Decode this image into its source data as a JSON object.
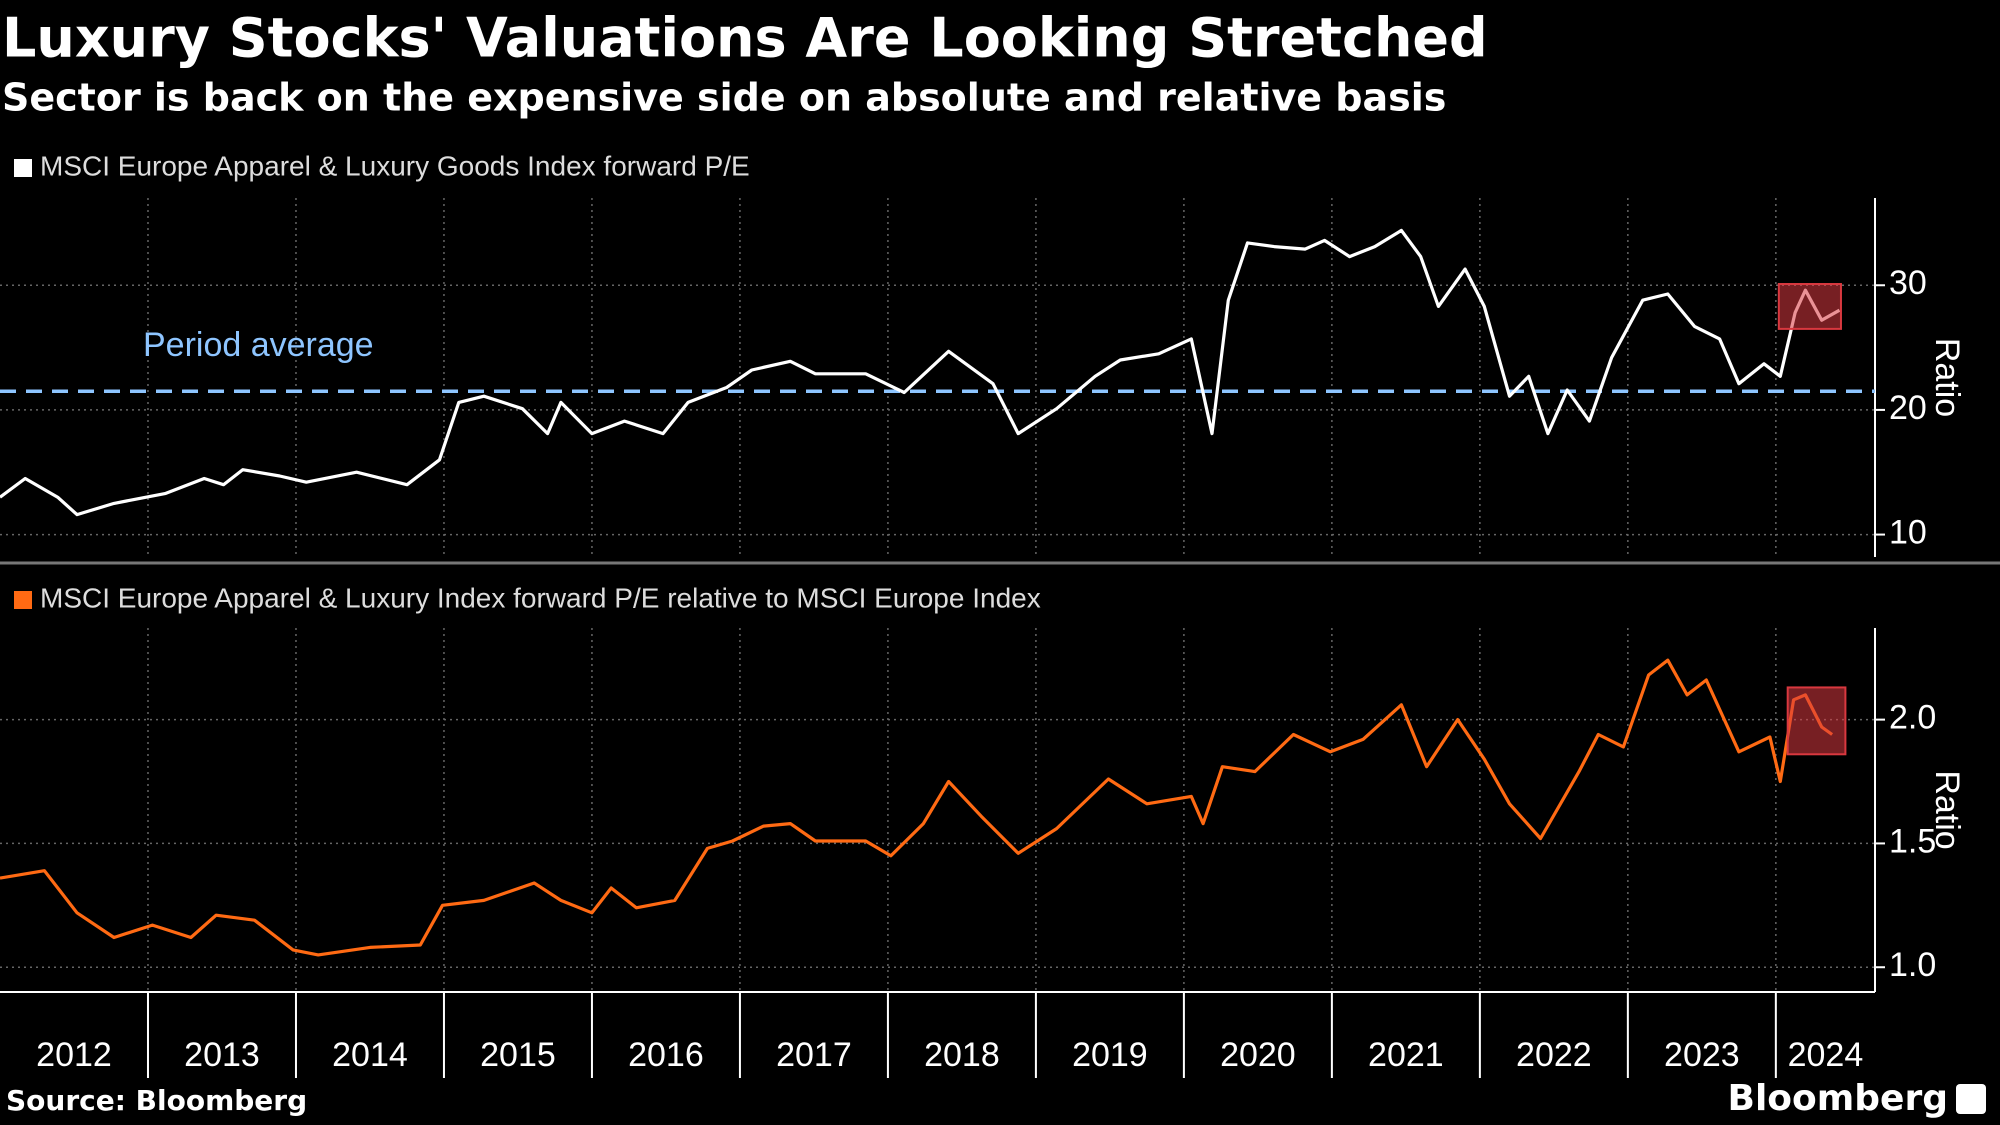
{
  "title": "Luxury Stocks' Valuations Are Looking Stretched",
  "subtitle": "Sector is back on the expensive side on absolute and relative basis",
  "source": "Source: Bloomberg",
  "brand": "Bloomberg",
  "chart_data": [
    {
      "type": "line",
      "ylabel": "Ratio",
      "grid": true,
      "xlim": [
        2012,
        2024.67
      ],
      "ylim": [
        8.2,
        37
      ],
      "yticks": [
        10,
        20,
        30
      ],
      "x": [
        2012.0,
        2012.17,
        2012.39,
        2012.52,
        2012.77,
        2013.12,
        2013.38,
        2013.51,
        2013.64,
        2013.89,
        2014.07,
        2014.41,
        2014.75,
        2014.97,
        2015.1,
        2015.27,
        2015.53,
        2015.7,
        2015.79,
        2016.0,
        2016.22,
        2016.48,
        2016.65,
        2016.91,
        2017.08,
        2017.34,
        2017.51,
        2017.85,
        2018.11,
        2018.41,
        2018.71,
        2018.88,
        2019.14,
        2019.4,
        2019.57,
        2019.83,
        2020.05,
        2020.19,
        2020.3,
        2020.43,
        2020.61,
        2020.82,
        2020.95,
        2021.12,
        2021.29,
        2021.47,
        2021.6,
        2021.72,
        2021.9,
        2022.03,
        2022.2,
        2022.33,
        2022.46,
        2022.59,
        2022.74,
        2022.89,
        2023.1,
        2023.27,
        2023.45,
        2023.62,
        2023.75,
        2023.92,
        2024.03,
        2024.13,
        2024.2,
        2024.31,
        2024.43
      ],
      "series": [
        {
          "name": "MSCI Europe Apparel & Luxury Goods Index forward P/E",
          "color": "#ffffff",
          "values": [
            13.0,
            14.5,
            13.0,
            11.6,
            12.5,
            13.3,
            14.5,
            14.0,
            15.2,
            14.7,
            14.2,
            15.0,
            14.0,
            16.0,
            20.6,
            21.1,
            20.1,
            18.1,
            20.6,
            18.1,
            19.1,
            18.1,
            20.6,
            21.8,
            23.2,
            23.9,
            22.9,
            22.9,
            21.4,
            24.7,
            22.1,
            18.1,
            20.1,
            22.7,
            24.0,
            24.5,
            25.7,
            18.1,
            28.8,
            33.4,
            33.1,
            32.9,
            33.6,
            32.3,
            33.1,
            34.4,
            32.3,
            28.3,
            31.3,
            28.3,
            21.1,
            22.7,
            18.1,
            21.6,
            19.1,
            24.2,
            28.8,
            29.3,
            26.7,
            25.7,
            22.1,
            23.7,
            22.7,
            27.8,
            29.6,
            27.2,
            28.0
          ]
        }
      ],
      "reference_line": {
        "label": "Period average",
        "value": 21.5,
        "color": "#8ec5ff"
      },
      "highlight": {
        "x": [
          2024.02,
          2024.44
        ],
        "y": [
          26.5,
          30.1
        ],
        "color": "#d9383f"
      }
    },
    {
      "type": "line",
      "ylabel": "Ratio",
      "grid": true,
      "xlim": [
        2012,
        2024.67
      ],
      "ylim": [
        0.9,
        2.37
      ],
      "yticks": [
        {
          "value": 1,
          "label": "1.0"
        },
        1.5,
        {
          "value": 2,
          "label": "2.0"
        }
      ],
      "xticks": [
        2012,
        2013,
        2014,
        2015,
        2016,
        2017,
        2018,
        2019,
        2020,
        2021,
        2022,
        2023,
        2024
      ],
      "x": [
        2012.0,
        2012.3,
        2012.52,
        2012.77,
        2013.03,
        2013.29,
        2013.46,
        2013.72,
        2013.98,
        2014.15,
        2014.5,
        2014.84,
        2014.99,
        2015.27,
        2015.61,
        2015.79,
        2016.0,
        2016.13,
        2016.3,
        2016.56,
        2016.78,
        2016.95,
        2017.16,
        2017.34,
        2017.51,
        2017.85,
        2018.02,
        2018.24,
        2018.41,
        2018.63,
        2018.88,
        2019.14,
        2019.49,
        2019.75,
        2020.05,
        2020.13,
        2020.26,
        2020.48,
        2020.74,
        2020.99,
        2021.21,
        2021.47,
        2021.64,
        2021.85,
        2022.03,
        2022.2,
        2022.41,
        2022.67,
        2022.8,
        2022.97,
        2023.14,
        2023.27,
        2023.4,
        2023.53,
        2023.75,
        2023.96,
        2024.03,
        2024.12,
        2024.2,
        2024.31,
        2024.38
      ],
      "series": [
        {
          "name": "MSCI Europe Apparel & Luxury Index forward P/E relative to MSCI Europe Index",
          "color": "#ff6a13",
          "values": [
            1.36,
            1.39,
            1.22,
            1.12,
            1.17,
            1.12,
            1.21,
            1.19,
            1.07,
            1.05,
            1.08,
            1.09,
            1.25,
            1.27,
            1.34,
            1.27,
            1.22,
            1.32,
            1.24,
            1.27,
            1.48,
            1.51,
            1.57,
            1.58,
            1.51,
            1.51,
            1.45,
            1.58,
            1.75,
            1.61,
            1.46,
            1.56,
            1.76,
            1.66,
            1.69,
            1.58,
            1.81,
            1.79,
            1.94,
            1.87,
            1.92,
            2.06,
            1.81,
            2.0,
            1.84,
            1.66,
            1.52,
            1.79,
            1.94,
            1.89,
            2.18,
            2.24,
            2.1,
            2.16,
            1.87,
            1.93,
            1.75,
            2.08,
            2.1,
            1.97,
            1.94
          ]
        }
      ],
      "highlight": {
        "x": [
          2024.08,
          2024.47
        ],
        "y": [
          1.86,
          2.13
        ],
        "color": "#d9383f"
      }
    }
  ]
}
